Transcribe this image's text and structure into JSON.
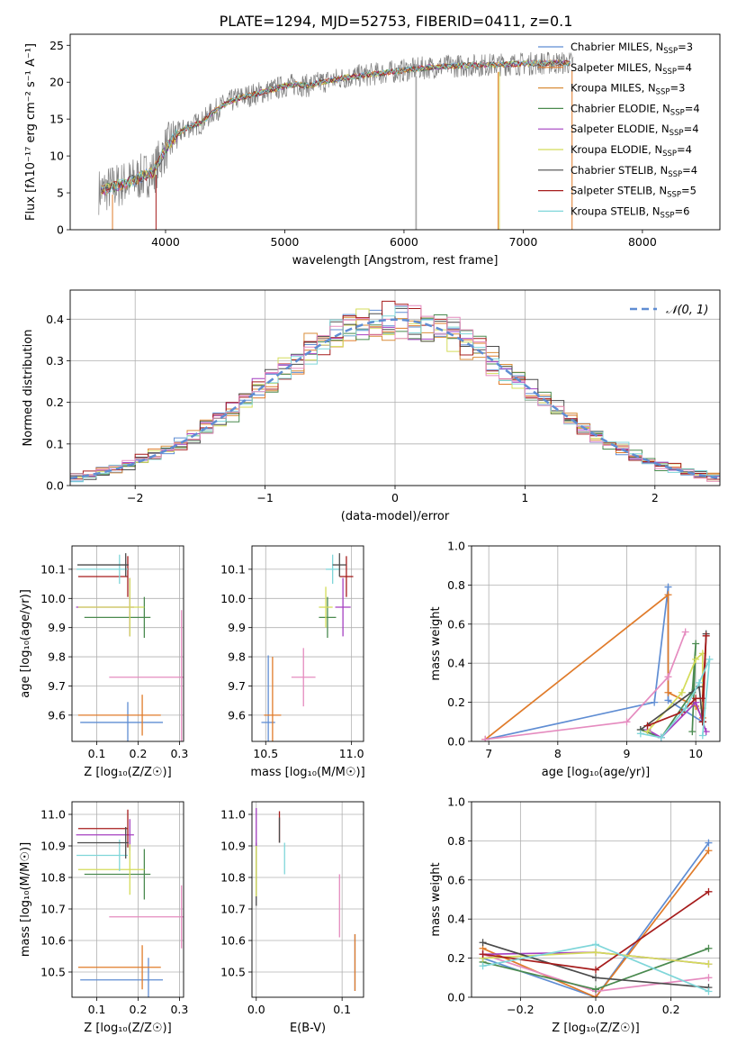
{
  "title": "PLATE=1294, MJD=52753, FIBERID=0411, z=0.1",
  "colors": {
    "chabrier_miles": "#5f8dd3",
    "salpeter_miles": "#e07b2a",
    "kroupa_miles": "#d98e3a",
    "chabrier_elodie": "#4a8a4f",
    "salpeter_elodie": "#a43fc0",
    "kroupa_elodie": "#d4dc5a",
    "chabrier_stelib": "#4b4b4b",
    "salpeter_stelib": "#a61c1c",
    "kroupa_stelib": "#7fd6d9",
    "data": "#808080",
    "normal": "#5f8dd3",
    "pink": "#e58bbf"
  },
  "chart_data": [
    {
      "id": "spectrum",
      "type": "line",
      "xlabel": "wavelength [Angstrom, rest frame]",
      "ylabel": "Flux [fλ10⁻¹⁷ erg cm⁻² s⁻¹ A⁻¹]",
      "xlim": [
        3200,
        8650
      ],
      "ylim": [
        0,
        26.5
      ],
      "xticks": [
        "4000",
        "5000",
        "6000",
        "7000",
        "8000"
      ],
      "yticks": [
        "0",
        "5",
        "10",
        "15",
        "20",
        "25"
      ],
      "grid": false,
      "legend_position": "top-right",
      "legend": [
        "Chabrier MILES, N_SSP=3",
        "Salpeter MILES, N_SSP=4",
        "Kroupa MILES, N_SSP=3",
        "Chabrier ELODIE, N_SSP=4",
        "Salpeter ELODIE, N_SSP=4",
        "Kroupa ELODIE, N_SSP=4",
        "Chabrier STELIB, N_SSP=4",
        "Salpeter STELIB, N_SSP=5",
        "Kroupa STELIB, N_SSP=6"
      ],
      "legend_prefix": [
        "Chabrier MILES, N",
        "Salpeter MILES, N",
        "Kroupa MILES, N",
        "Chabrier ELODIE, N",
        "Salpeter ELODIE, N",
        "Kroupa ELODIE, N",
        "Chabrier STELIB, N",
        "Salpeter STELIB, N",
        "Kroupa STELIB, N"
      ],
      "legend_sub": "SSP",
      "legend_n": [
        "=3",
        "=4",
        "=3",
        "=4",
        "=4",
        "=4",
        "=4",
        "=5",
        "=6"
      ],
      "continuum_x": [
        3450,
        3600,
        3700,
        3800,
        3900,
        4000,
        4100,
        4200,
        4300,
        4400,
        4500,
        4600,
        4700,
        4800,
        4900,
        5000,
        5100,
        5200,
        5300,
        5400,
        5500,
        5600,
        5700,
        5800,
        5900,
        6000,
        6200,
        6400,
        6600,
        6800,
        7000,
        7200,
        7400
      ],
      "continuum_y": [
        5.2,
        6,
        6.5,
        7.2,
        7.8,
        11,
        13,
        14,
        14.5,
        16,
        17,
        17.8,
        18.2,
        18.6,
        19,
        19.5,
        19.7,
        19.5,
        20,
        20.3,
        20.6,
        20.8,
        21,
        21.2,
        21.4,
        21.6,
        22,
        22.2,
        22.3,
        22.4,
        22.5,
        22.6,
        22.6
      ]
    },
    {
      "id": "residuals",
      "type": "histogram",
      "xlabel": "(data-model)/error",
      "ylabel": "Normed distribution",
      "xlim": [
        -2.5,
        2.5
      ],
      "ylim": [
        0,
        0.47
      ],
      "xticks": [
        "−2",
        "−1",
        "0",
        "1",
        "2"
      ],
      "yticks": [
        "0.0",
        "0.1",
        "0.2",
        "0.3",
        "0.4"
      ],
      "grid": true,
      "legend": [
        "𝒩(0, 1)"
      ],
      "legend_position": "top-right",
      "bin_width": 0.1
    },
    {
      "id": "age_vs_z",
      "type": "errorbar",
      "xlabel": "Z [log₁₀(Z/Z☉)]",
      "ylabel": "age  [log₁₀(age/yr)]",
      "xlim": [
        0.04,
        0.31
      ],
      "ylim": [
        9.51,
        10.18
      ],
      "xticks": [
        "0.1",
        "0.2",
        "0.3"
      ],
      "yticks": [
        "9.6",
        "9.7",
        "9.8",
        "9.9",
        "10.0",
        "10.1"
      ],
      "grid": true,
      "points": [
        {
          "x": 0.16,
          "xerr": 0.1,
          "y": 9.575,
          "yerr": 0.07,
          "color": "#5f8dd3",
          "xo": 0.015
        },
        {
          "x": 0.155,
          "xerr": 0.1,
          "y": 9.6,
          "yerr": 0.07,
          "color": "#e07b2a",
          "xo": 0.055
        },
        {
          "x": 0.22,
          "xerr": 0.09,
          "y": 9.73,
          "yerr": 0.23,
          "color": "#e58bbf",
          "xo": 0.085
        },
        {
          "x": 0.15,
          "xerr": 0.08,
          "y": 9.935,
          "yerr": 0.07,
          "color": "#4a8a4f",
          "xo": 0.065
        },
        {
          "x": 0.12,
          "xerr": 0.07,
          "y": 9.97,
          "yerr": 0.1,
          "color": "#a43fc0",
          "xo": 0.06
        },
        {
          "x": 0.135,
          "xerr": 0.08,
          "y": 9.97,
          "yerr": 0.1,
          "color": "#d4dc5a",
          "xo": 0.045
        },
        {
          "x": 0.115,
          "xerr": 0.06,
          "y": 10.075,
          "yerr": 0.07,
          "color": "#a61c1c",
          "xo": 0.06
        },
        {
          "x": 0.113,
          "xerr": 0.062,
          "y": 10.1,
          "yerr": 0.05,
          "color": "#7fd6d9",
          "xo": 0.042
        },
        {
          "x": 0.115,
          "xerr": 0.062,
          "y": 10.115,
          "yerr": 0.04,
          "color": "#4b4b4b",
          "xo": 0.055
        }
      ]
    },
    {
      "id": "age_vs_mass",
      "type": "errorbar",
      "xlabel": "mass [log₁₀(M/M☉)]",
      "ylabel": "",
      "xlim": [
        10.42,
        11.07
      ],
      "ylim": [
        9.51,
        10.18
      ],
      "xticks": [
        "10.5",
        "11.0"
      ],
      "yticks": [
        "9.6",
        "9.7",
        "9.8",
        "9.9",
        "10.0",
        "10.1"
      ],
      "grid": true,
      "points": [
        {
          "x": 10.515,
          "xerr": 0.04,
          "y": 9.575,
          "yerr": 0.23,
          "color": "#5f8dd3"
        },
        {
          "x": 10.54,
          "xerr": 0.05,
          "y": 9.6,
          "yerr": 0.2,
          "color": "#e07b2a"
        },
        {
          "x": 10.72,
          "xerr": 0.07,
          "y": 9.73,
          "yerr": 0.1,
          "color": "#e58bbf"
        },
        {
          "x": 10.86,
          "xerr": 0.05,
          "y": 9.935,
          "yerr": 0.07,
          "color": "#4a8a4f"
        },
        {
          "x": 10.95,
          "xerr": 0.045,
          "y": 9.97,
          "yerr": 0.1,
          "color": "#a43fc0"
        },
        {
          "x": 10.85,
          "xerr": 0.04,
          "y": 9.97,
          "yerr": 0.07,
          "color": "#d4dc5a"
        },
        {
          "x": 10.97,
          "xerr": 0.04,
          "y": 10.075,
          "yerr": 0.07,
          "color": "#a61c1c"
        },
        {
          "x": 10.89,
          "xerr": 0.04,
          "y": 10.1,
          "yerr": 0.05,
          "color": "#7fd6d9"
        },
        {
          "x": 10.93,
          "xerr": 0.04,
          "y": 10.115,
          "yerr": 0.04,
          "color": "#4b4b4b"
        }
      ]
    },
    {
      "id": "mass_weight_vs_age",
      "type": "line",
      "xlabel": "age  [log₁₀(age/yr)]",
      "ylabel": "mass weight",
      "xlim": [
        6.75,
        10.35
      ],
      "ylim": [
        0,
        1
      ],
      "xticks": [
        "7",
        "8",
        "9",
        "10"
      ],
      "yticks": [
        "0.0",
        "0.2",
        "0.4",
        "0.6",
        "0.8",
        "1.0"
      ],
      "grid": true,
      "series": [
        {
          "color": "#5f8dd3",
          "x": [
            6.95,
            9.4,
            9.6,
            9.6,
            10.1
          ],
          "y": [
            0.01,
            0.2,
            0.79,
            0.21,
            0.1
          ]
        },
        {
          "color": "#e07b2a",
          "x": [
            6.95,
            9.6,
            9.6,
            10.0,
            10.1
          ],
          "y": [
            0.01,
            0.75,
            0.25,
            0.18,
            0.12
          ]
        },
        {
          "color": "#e58bbf",
          "x": [
            6.95,
            9.0,
            9.6,
            9.85,
            9.6
          ],
          "y": [
            0.01,
            0.1,
            0.33,
            0.56,
            0.33
          ]
        },
        {
          "color": "#4a8a4f",
          "x": [
            9.2,
            9.5,
            9.95,
            10.0,
            9.95
          ],
          "y": [
            0.06,
            0.02,
            0.25,
            0.5,
            0.05
          ]
        },
        {
          "color": "#a43fc0",
          "x": [
            9.3,
            9.5,
            10.0,
            10.15
          ],
          "y": [
            0.06,
            0.02,
            0.2,
            0.05
          ]
        },
        {
          "color": "#d4dc5a",
          "x": [
            9.3,
            9.8,
            10.0,
            10.1,
            10.1
          ],
          "y": [
            0.05,
            0.25,
            0.42,
            0.45,
            0.17
          ]
        },
        {
          "color": "#4b4b4b",
          "x": [
            9.2,
            10.05,
            10.1,
            10.15,
            10.1
          ],
          "y": [
            0.06,
            0.28,
            0.1,
            0.55,
            0.1
          ]
        },
        {
          "color": "#a61c1c",
          "x": [
            9.3,
            9.8,
            10.0,
            10.1,
            10.15,
            10.1
          ],
          "y": [
            0.08,
            0.15,
            0.22,
            0.22,
            0.54,
            0.1
          ]
        },
        {
          "color": "#7fd6d9",
          "x": [
            9.2,
            9.5,
            9.85,
            10.05,
            10.2,
            10.1
          ],
          "y": [
            0.04,
            0.02,
            0.17,
            0.3,
            0.42,
            0.03
          ]
        }
      ]
    },
    {
      "id": "mass_vs_z",
      "type": "errorbar",
      "xlabel": "Z [log₁₀(Z/Z☉)]",
      "ylabel": "mass [log₁₀(M/M☉)]",
      "xlim": [
        0.04,
        0.31
      ],
      "ylim": [
        10.42,
        11.04
      ],
      "xticks": [
        "0.1",
        "0.2",
        "0.3"
      ],
      "yticks": [
        "10.5",
        "10.6",
        "10.7",
        "10.8",
        "10.9",
        "11.0"
      ],
      "grid": true,
      "points": [
        {
          "x": 0.16,
          "xerr": 0.1,
          "y": 10.475,
          "yerr": 0.07,
          "color": "#5f8dd3",
          "xo": 0.065
        },
        {
          "x": 0.155,
          "xerr": 0.1,
          "y": 10.515,
          "yerr": 0.07,
          "color": "#e07b2a",
          "xo": 0.055
        },
        {
          "x": 0.22,
          "xerr": 0.09,
          "y": 10.675,
          "yerr": 0.1,
          "color": "#e58bbf",
          "xo": 0.085
        },
        {
          "x": 0.15,
          "xerr": 0.08,
          "y": 10.81,
          "yerr": 0.08,
          "color": "#4a8a4f",
          "xo": 0.065
        },
        {
          "x": 0.12,
          "xerr": 0.07,
          "y": 10.935,
          "yerr": 0.05,
          "color": "#a43fc0",
          "xo": 0.06
        },
        {
          "x": 0.135,
          "xerr": 0.08,
          "y": 10.825,
          "yerr": 0.08,
          "color": "#d4dc5a",
          "xo": 0.045
        },
        {
          "x": 0.115,
          "xerr": 0.06,
          "y": 10.955,
          "yerr": 0.06,
          "color": "#a61c1c",
          "xo": 0.06
        },
        {
          "x": 0.113,
          "xerr": 0.062,
          "y": 10.87,
          "yerr": 0.05,
          "color": "#7fd6d9",
          "xo": 0.042
        },
        {
          "x": 0.115,
          "xerr": 0.062,
          "y": 10.91,
          "yerr": 0.05,
          "color": "#4b4b4b",
          "xo": 0.055
        }
      ]
    },
    {
      "id": "mass_vs_ebv",
      "type": "errorbar",
      "xlabel": "E(B-V)",
      "ylabel": "",
      "xlim": [
        -0.005,
        0.125
      ],
      "ylim": [
        10.42,
        11.04
      ],
      "xticks": [
        "0.0",
        "0.1"
      ],
      "yticks": [
        "10.5",
        "10.6",
        "10.7",
        "10.8",
        "10.9",
        "11.0"
      ],
      "grid": true,
      "points": [
        {
          "x": 0.115,
          "xerr": 0,
          "y": 10.53,
          "yerr": 0.09,
          "color": "#5f8dd3"
        },
        {
          "x": 0.115,
          "xerr": 0,
          "y": 10.53,
          "yerr": 0.09,
          "color": "#e07b2a"
        },
        {
          "x": 0.097,
          "xerr": 0,
          "y": 10.71,
          "yerr": 0.1,
          "color": "#e58bbf"
        },
        {
          "x": 0.0,
          "xerr": 0,
          "y": 10.81,
          "yerr": 0.1,
          "color": "#4b4b4b"
        },
        {
          "x": 0.0,
          "xerr": 0,
          "y": 10.96,
          "yerr": 0.06,
          "color": "#a43fc0"
        },
        {
          "x": 0.0,
          "xerr": 0,
          "y": 10.82,
          "yerr": 0.08,
          "color": "#d4dc5a"
        },
        {
          "x": 0.027,
          "xerr": 0,
          "y": 10.96,
          "yerr": 0.05,
          "color": "#a61c1c"
        },
        {
          "x": 0.033,
          "xerr": 0,
          "y": 10.86,
          "yerr": 0.05,
          "color": "#7fd6d9"
        },
        {
          "x": 0.027,
          "xerr": 0,
          "y": 10.95,
          "yerr": 0.04,
          "color": "#4b4b4b"
        }
      ]
    },
    {
      "id": "mass_weight_vs_z",
      "type": "line",
      "xlabel": "Z [log₁₀(Z/Z☉)]",
      "ylabel": "mass weight",
      "xlim": [
        -0.33,
        0.33
      ],
      "ylim": [
        0,
        1
      ],
      "xticks": [
        "−0.2",
        "0.0",
        "0.2"
      ],
      "yticks": [
        "0.0",
        "0.2",
        "0.4",
        "0.6",
        "0.8",
        "1.0"
      ],
      "grid": true,
      "series": [
        {
          "color": "#5f8dd3",
          "x": [
            -0.3,
            0.0,
            0.3
          ],
          "y": [
            0.2,
            0.0,
            0.79
          ]
        },
        {
          "color": "#e07b2a",
          "x": [
            -0.3,
            0.0,
            0.3
          ],
          "y": [
            0.25,
            0.0,
            0.75
          ]
        },
        {
          "color": "#e58bbf",
          "x": [
            -0.3,
            0.0,
            0.3
          ],
          "y": [
            0.22,
            0.03,
            0.1
          ]
        },
        {
          "color": "#4a8a4f",
          "x": [
            -0.3,
            0.0,
            0.3
          ],
          "y": [
            0.18,
            0.04,
            0.25
          ]
        },
        {
          "color": "#a43fc0",
          "x": [
            -0.3,
            0.0,
            0.3
          ],
          "y": [
            0.22,
            0.23,
            0.17
          ]
        },
        {
          "color": "#d4dc5a",
          "x": [
            -0.3,
            0.0,
            0.3
          ],
          "y": [
            0.2,
            0.23,
            0.17
          ]
        },
        {
          "color": "#4b4b4b",
          "x": [
            -0.3,
            0.0,
            0.3
          ],
          "y": [
            0.28,
            0.1,
            0.05
          ]
        },
        {
          "color": "#a61c1c",
          "x": [
            -0.3,
            0.0,
            0.3
          ],
          "y": [
            0.22,
            0.14,
            0.54
          ]
        },
        {
          "color": "#7fd6d9",
          "x": [
            -0.3,
            0.0,
            0.3
          ],
          "y": [
            0.16,
            0.27,
            0.03
          ]
        }
      ]
    }
  ]
}
